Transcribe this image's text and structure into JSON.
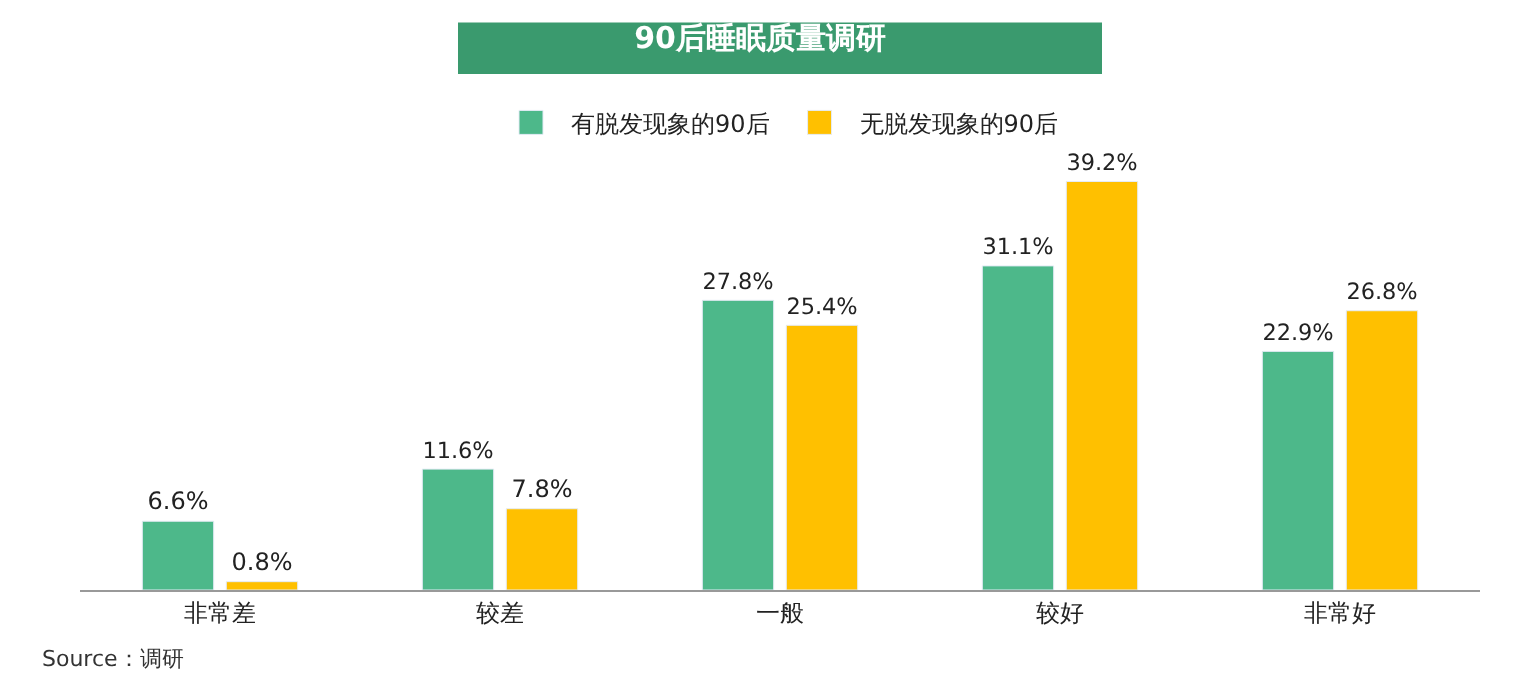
{
  "chart_data": {
    "type": "bar",
    "title": "90后睡眠质量调研",
    "categories": [
      "非常差",
      "较差",
      "一般",
      "较好",
      "非常好"
    ],
    "series": [
      {
        "name": "有脱发现象的90后",
        "color": "#4db88a",
        "values": [
          6.6,
          11.6,
          27.8,
          31.1,
          22.9
        ],
        "value_labels": [
          "6.6%",
          "11.6%",
          "27.8%",
          "31.1%",
          "22.9%"
        ]
      },
      {
        "name": "无脱发现象的90后",
        "color": "#ffc000",
        "values": [
          0.8,
          7.8,
          25.4,
          39.2,
          26.8
        ],
        "value_labels": [
          "0.8%",
          "7.8%",
          "25.4%",
          "39.2%",
          "26.8%"
        ]
      }
    ],
    "legend": "top",
    "annotations": [
      "Source：调研"
    ]
  }
}
